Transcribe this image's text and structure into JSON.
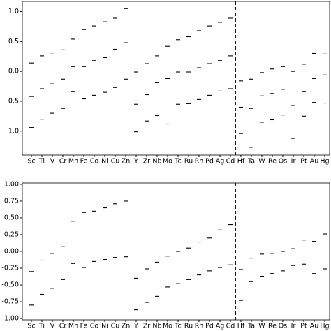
{
  "chart_data": [
    {
      "type": "scatter",
      "categories": [
        "Sc",
        "Ti",
        "V",
        "Cr",
        "Mn",
        "Fe",
        "Co",
        "Ni",
        "Cu",
        "Zn",
        "Y",
        "Zr",
        "Nb",
        "Mo",
        "Tc",
        "Ru",
        "Rh",
        "Pd",
        "Ag",
        "Cd",
        "Hf",
        "Ta",
        "W",
        "Re",
        "Os",
        "Ir",
        "Pt",
        "Au",
        "Hg"
      ],
      "ylim": [
        -1.4,
        1.17
      ],
      "yticks": [
        {
          "value": 1.0,
          "label": "1.0"
        },
        0.5,
        {
          "value": 0.0,
          "label": "0.0"
        },
        -0.5,
        {
          "value": -1.0,
          "label": "-1.0"
        }
      ],
      "series": [
        {
          "color": "#000000",
          "values": [
            0.14,
            0.26,
            0.29,
            0.36,
            0.54,
            0.7,
            0.76,
            0.83,
            0.89,
            1.05,
            -0.01,
            0.13,
            0.26,
            0.42,
            0.53,
            0.58,
            0.68,
            0.76,
            0.82,
            0.89,
            -0.16,
            -0.13,
            -0.02,
            0.04,
            0.08,
            0.0,
            0.12,
            0.3,
            0.29
          ]
        },
        {
          "color": "#000000",
          "values": [
            -0.42,
            -0.29,
            -0.21,
            -0.13,
            0.08,
            0.08,
            0.18,
            0.23,
            0.37,
            0.48,
            -0.55,
            -0.39,
            -0.19,
            -0.12,
            -0.01,
            -0.01,
            0.06,
            0.13,
            0.18,
            0.26,
            -0.6,
            -0.62,
            -0.41,
            -0.37,
            -0.3,
            -0.57,
            -0.34,
            -0.12,
            -0.06
          ]
        },
        {
          "color": "#000000",
          "values": [
            -0.94,
            -0.8,
            -0.7,
            -0.62,
            -0.34,
            -0.46,
            -0.4,
            -0.35,
            -0.27,
            -0.13,
            -1.01,
            -0.83,
            -0.74,
            -0.88,
            -0.55,
            -0.54,
            -0.47,
            -0.4,
            -0.33,
            -0.29,
            -1.04,
            -1.27,
            -0.85,
            -0.81,
            -0.73,
            -1.12,
            -0.75,
            -0.52,
            -0.53
          ]
        }
      ]
    },
    {
      "type": "scatter",
      "categories": [
        "Sc",
        "Ti",
        "V",
        "Cr",
        "Mn",
        "Fe",
        "Co",
        "Ni",
        "Cu",
        "Zn",
        "Y",
        "Zr",
        "Nb",
        "Mo",
        "Tc",
        "Ru",
        "Rh",
        "Pd",
        "Ag",
        "Cd",
        "Hf",
        "Ta",
        "W",
        "Re",
        "Os",
        "Ir",
        "Pt",
        "Au",
        "Hg"
      ],
      "ylim": [
        -1.02,
        1.02
      ],
      "yticks": [
        {
          "value": 1.0,
          "label": "1.00"
        },
        0.75,
        {
          "value": 0.5,
          "label": "0.50"
        },
        0.25,
        {
          "value": 0.0,
          "label": "0.00"
        },
        -0.25,
        {
          "value": -0.5,
          "label": "-0.50"
        },
        -0.75,
        {
          "value": -1.0,
          "label": "-1.00"
        }
      ],
      "series": [
        {
          "color": "#000000",
          "values": [
            -0.3,
            -0.13,
            -0.03,
            0.07,
            0.45,
            0.58,
            0.6,
            0.65,
            0.71,
            0.75,
            -0.4,
            -0.26,
            -0.16,
            -0.07,
            0.0,
            0.05,
            0.14,
            0.2,
            0.32,
            0.4,
            -0.27,
            -0.1,
            -0.04,
            -0.03,
            0.0,
            0.04,
            0.17,
            0.15,
            0.26
          ]
        },
        {
          "color": "#000000",
          "values": [
            -0.8,
            -0.64,
            -0.55,
            -0.42,
            -0.18,
            -0.24,
            -0.15,
            -0.12,
            -0.09,
            -0.08,
            -0.87,
            -0.76,
            -0.67,
            -0.53,
            -0.48,
            -0.42,
            -0.35,
            -0.29,
            -0.24,
            -0.2,
            -0.73,
            -0.45,
            -0.37,
            -0.33,
            -0.29,
            -0.21,
            -0.19,
            -0.33,
            -0.26
          ]
        }
      ]
    }
  ]
}
